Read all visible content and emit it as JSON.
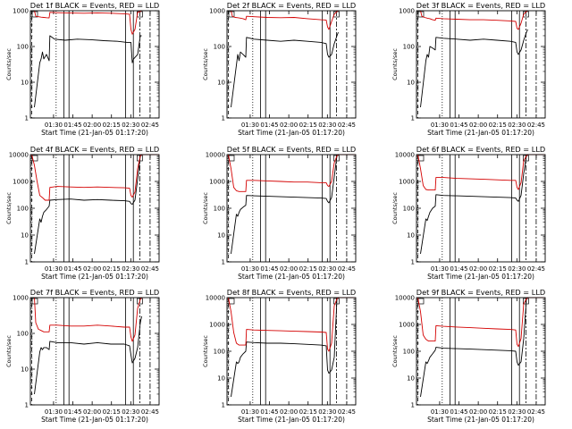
{
  "chart_data": [
    {
      "type": "line",
      "title": "Det 1f BLACK = Events, RED = LLD",
      "xlabel": "Start Time (21-Jan-05 01:17:20)",
      "ylabel": "Counts/sec",
      "y_scale": "log",
      "ylim": [
        1,
        1000
      ],
      "y_ticks": [
        1,
        10,
        100,
        1000
      ],
      "xlim_minutes": [
        0,
        96
      ],
      "x_tick_labels": [
        "01:30",
        "01:45",
        "02:00",
        "02:15",
        "02:30",
        "02:45"
      ],
      "series": [
        {
          "color": "#000000",
          "x": [
            3,
            7,
            8,
            9,
            10,
            12,
            14,
            14.5,
            18,
            26,
            35,
            45,
            55,
            65,
            72,
            75,
            76,
            77,
            80,
            82,
            83
          ],
          "values": [
            2,
            35,
            45,
            70,
            45,
            60,
            40,
            200,
            160,
            150,
            160,
            155,
            145,
            140,
            130,
            130,
            35,
            45,
            60,
            200,
            200
          ]
        },
        {
          "color": "#d40000",
          "x": [
            3,
            4,
            6,
            8,
            10,
            12,
            14,
            14.5,
            20,
            30,
            40,
            50,
            60,
            70,
            74,
            75,
            76,
            78,
            80,
            82,
            83
          ],
          "values": [
            1000,
            700,
            680,
            660,
            650,
            640,
            630,
            900,
            880,
            860,
            850,
            870,
            850,
            820,
            800,
            300,
            220,
            300,
            900,
            950,
            1000
          ]
        }
      ]
    },
    {
      "type": "line",
      "title": "Det 2f BLACK = Events, RED = LLD",
      "xlabel": "Start Time (21-Jan-05 01:17:20)",
      "ylabel": "Counts/sec",
      "y_scale": "log",
      "ylim": [
        1,
        1000
      ],
      "y_ticks": [
        1,
        10,
        100,
        1000
      ],
      "xlim_minutes": [
        0,
        96
      ],
      "x_tick_labels": [
        "01:30",
        "01:45",
        "02:00",
        "02:15",
        "02:30",
        "02:45"
      ],
      "series": [
        {
          "color": "#000000",
          "x": [
            3,
            7,
            8,
            9,
            10,
            12,
            14,
            14.5,
            20,
            30,
            40,
            50,
            60,
            70,
            74,
            75,
            76,
            78,
            80,
            82,
            83
          ],
          "values": [
            2,
            30,
            60,
            40,
            70,
            60,
            50,
            180,
            160,
            150,
            140,
            150,
            140,
            130,
            120,
            60,
            50,
            60,
            120,
            200,
            250
          ]
        },
        {
          "color": "#d40000",
          "x": [
            3,
            4,
            6,
            8,
            10,
            12,
            14,
            14.5,
            20,
            30,
            40,
            50,
            60,
            70,
            74,
            75,
            76,
            78,
            80,
            82,
            83
          ],
          "values": [
            1000,
            700,
            650,
            640,
            620,
            600,
            560,
            700,
            680,
            650,
            640,
            650,
            600,
            560,
            550,
            350,
            300,
            500,
            800,
            950,
            1000
          ]
        }
      ]
    },
    {
      "type": "line",
      "title": "Det 3f BLACK = Events, RED = LLD",
      "xlabel": "Start Time (21-Jan-05 01:17:20)",
      "ylabel": "Counts/sec",
      "y_scale": "log",
      "ylim": [
        1,
        1000
      ],
      "y_ticks": [
        1,
        10,
        100,
        1000
      ],
      "xlim_minutes": [
        0,
        96
      ],
      "x_tick_labels": [
        "01:30",
        "01:45",
        "02:00",
        "02:15",
        "02:30",
        "02:45"
      ],
      "series": [
        {
          "color": "#000000",
          "x": [
            3,
            7,
            8,
            9,
            10,
            12,
            14,
            14.5,
            20,
            30,
            40,
            50,
            60,
            70,
            74,
            75,
            76,
            78,
            80,
            82,
            83
          ],
          "values": [
            2,
            40,
            60,
            50,
            100,
            90,
            80,
            180,
            170,
            160,
            150,
            160,
            150,
            140,
            130,
            70,
            60,
            80,
            150,
            250,
            300
          ]
        },
        {
          "color": "#d40000",
          "x": [
            3,
            4,
            6,
            8,
            10,
            12,
            14,
            14.5,
            20,
            30,
            40,
            50,
            60,
            70,
            74,
            75,
            76,
            78,
            80,
            82,
            83
          ],
          "values": [
            1000,
            700,
            650,
            620,
            600,
            560,
            540,
            620,
            600,
            580,
            560,
            560,
            540,
            520,
            500,
            320,
            300,
            450,
            800,
            950,
            1000
          ]
        }
      ]
    },
    {
      "type": "line",
      "title": "Det 4f BLACK = Events, RED = LLD",
      "xlabel": "Start Time (21-Jan-05 01:17:20)",
      "ylabel": "Counts/sec",
      "y_scale": "log",
      "ylim": [
        1,
        10000
      ],
      "y_ticks": [
        1,
        10,
        100,
        1000,
        10000
      ],
      "xlim_minutes": [
        0,
        96
      ],
      "x_tick_labels": [
        "01:30",
        "01:45",
        "02:00",
        "02:15",
        "02:30",
        "02:45"
      ],
      "series": [
        {
          "color": "#000000",
          "x": [
            3,
            7,
            8,
            9,
            10,
            12,
            14,
            14.5,
            20,
            30,
            40,
            50,
            60,
            70,
            74,
            75,
            76,
            78,
            80,
            82,
            83
          ],
          "values": [
            2,
            40,
            30,
            50,
            70,
            90,
            120,
            200,
            210,
            220,
            200,
            210,
            200,
            190,
            180,
            150,
            140,
            200,
            1200,
            9000,
            10000
          ]
        },
        {
          "color": "#d40000",
          "x": [
            1,
            3,
            5,
            7,
            9,
            11,
            12,
            14,
            14.5,
            20,
            30,
            40,
            50,
            60,
            70,
            74,
            75,
            76,
            78,
            80,
            82,
            83,
            90,
            96
          ],
          "values": [
            10000,
            4000,
            1000,
            300,
            250,
            200,
            200,
            200,
            600,
            650,
            620,
            600,
            620,
            600,
            580,
            560,
            300,
            260,
            400,
            3000,
            9000,
            10000,
            10000,
            10000
          ]
        }
      ]
    },
    {
      "type": "line",
      "title": "Det 5f BLACK = Events, RED = LLD",
      "xlabel": "Start Time (21-Jan-05 01:17:20)",
      "ylabel": "Counts/sec",
      "y_scale": "log",
      "ylim": [
        1,
        10000
      ],
      "y_ticks": [
        1,
        10,
        100,
        1000,
        10000
      ],
      "xlim_minutes": [
        0,
        96
      ],
      "x_tick_labels": [
        "01:30",
        "01:45",
        "02:00",
        "02:15",
        "02:30",
        "02:45"
      ],
      "series": [
        {
          "color": "#000000",
          "x": [
            3,
            7,
            8,
            9,
            10,
            12,
            14,
            14.5,
            20,
            30,
            40,
            50,
            60,
            70,
            74,
            75,
            76,
            78,
            80,
            82,
            83
          ],
          "values": [
            2,
            60,
            50,
            70,
            90,
            110,
            130,
            300,
            290,
            280,
            270,
            260,
            250,
            240,
            230,
            180,
            160,
            250,
            1500,
            9000,
            10000
          ]
        },
        {
          "color": "#d40000",
          "x": [
            1,
            3,
            5,
            7,
            9,
            11,
            12,
            14,
            14.5,
            20,
            30,
            40,
            50,
            60,
            70,
            74,
            75,
            76,
            78,
            80,
            82,
            83,
            90,
            96
          ],
          "values": [
            10000,
            3000,
            600,
            450,
            420,
            420,
            420,
            420,
            1100,
            1100,
            1050,
            1000,
            950,
            950,
            900,
            900,
            700,
            650,
            1000,
            5000,
            9000,
            10000,
            10000,
            10000
          ]
        }
      ]
    },
    {
      "type": "line",
      "title": "Det 6f BLACK = Events, RED = LLD",
      "xlabel": "Start Time (21-Jan-05 01:17:20)",
      "ylabel": "Counts/sec",
      "y_scale": "log",
      "ylim": [
        1,
        10000
      ],
      "y_ticks": [
        1,
        10,
        100,
        1000,
        10000
      ],
      "xlim_minutes": [
        0,
        96
      ],
      "x_tick_labels": [
        "01:30",
        "01:45",
        "02:00",
        "02:15",
        "02:30",
        "02:45"
      ],
      "series": [
        {
          "color": "#000000",
          "x": [
            3,
            7,
            8,
            9,
            10,
            12,
            14,
            14.5,
            20,
            30,
            40,
            50,
            60,
            70,
            74,
            75,
            76,
            78,
            80,
            82,
            83
          ],
          "values": [
            2,
            40,
            35,
            50,
            70,
            100,
            120,
            320,
            300,
            290,
            280,
            270,
            260,
            250,
            240,
            200,
            180,
            300,
            2000,
            9000,
            10000
          ]
        },
        {
          "color": "#d40000",
          "x": [
            1,
            3,
            5,
            7,
            9,
            11,
            12,
            14,
            14.5,
            20,
            30,
            40,
            50,
            60,
            70,
            74,
            75,
            76,
            78,
            80,
            82,
            83,
            90,
            96
          ],
          "values": [
            10000,
            3000,
            700,
            500,
            480,
            480,
            480,
            480,
            1400,
            1400,
            1300,
            1250,
            1200,
            1150,
            1100,
            1100,
            600,
            500,
            900,
            6000,
            9000,
            10000,
            10000,
            10000
          ]
        }
      ]
    },
    {
      "type": "line",
      "title": "Det 7f BLACK = Events, RED = LLD",
      "xlabel": "Start Time (21-Jan-05 01:17:20)",
      "ylabel": "Counts/sec",
      "y_scale": "log",
      "ylim": [
        1,
        1000
      ],
      "y_ticks": [
        1,
        10,
        100,
        1000
      ],
      "xlim_minutes": [
        0,
        96
      ],
      "x_tick_labels": [
        "01:30",
        "01:45",
        "02:00",
        "02:15",
        "02:30",
        "02:45"
      ],
      "series": [
        {
          "color": "#000000",
          "x": [
            3,
            7,
            8,
            9,
            10,
            12,
            14,
            14.5,
            20,
            30,
            40,
            50,
            60,
            70,
            74,
            75,
            76,
            78,
            80,
            82,
            83
          ],
          "values": [
            2,
            30,
            40,
            35,
            40,
            40,
            35,
            60,
            55,
            55,
            50,
            55,
            50,
            50,
            45,
            25,
            15,
            20,
            40,
            200,
            300
          ]
        },
        {
          "color": "#d40000",
          "x": [
            3,
            4,
            6,
            8,
            10,
            12,
            14,
            14.5,
            20,
            30,
            40,
            50,
            60,
            70,
            74,
            75,
            76,
            78,
            80,
            82,
            83
          ],
          "values": [
            1000,
            200,
            130,
            120,
            110,
            110,
            110,
            170,
            170,
            160,
            160,
            170,
            160,
            150,
            150,
            80,
            60,
            90,
            500,
            900,
            1000
          ]
        }
      ]
    },
    {
      "type": "line",
      "title": "Det 8f BLACK = Events, RED = LLD",
      "xlabel": "Start Time (21-Jan-05 01:17:20)",
      "ylabel": "Counts/sec",
      "y_scale": "log",
      "ylim": [
        1,
        10000
      ],
      "y_ticks": [
        1,
        10,
        100,
        1000,
        10000
      ],
      "xlim_minutes": [
        0,
        96
      ],
      "x_tick_labels": [
        "01:30",
        "01:45",
        "02:00",
        "02:15",
        "02:30",
        "02:45"
      ],
      "series": [
        {
          "color": "#000000",
          "x": [
            3,
            7,
            8,
            9,
            10,
            12,
            14,
            14.5,
            20,
            30,
            40,
            50,
            60,
            70,
            74,
            75,
            76,
            78,
            80,
            82,
            83
          ],
          "values": [
            2,
            40,
            35,
            40,
            60,
            80,
            100,
            220,
            210,
            200,
            200,
            190,
            180,
            170,
            160,
            20,
            15,
            20,
            60,
            9000,
            10000
          ]
        },
        {
          "color": "#d40000",
          "x": [
            1,
            3,
            5,
            7,
            9,
            11,
            12,
            14,
            14.5,
            20,
            30,
            40,
            50,
            60,
            70,
            74,
            75,
            76,
            78,
            80,
            82,
            83,
            90,
            96
          ],
          "values": [
            10000,
            3000,
            500,
            200,
            170,
            170,
            170,
            170,
            650,
            620,
            600,
            580,
            560,
            540,
            520,
            500,
            120,
            100,
            200,
            5000,
            9000,
            10000,
            10000,
            10000
          ]
        }
      ]
    },
    {
      "type": "line",
      "title": "Det 9f BLACK = Events, RED = LLD",
      "xlabel": "Start Time (21-Jan-05 01:17:20)",
      "ylabel": "Counts/sec",
      "y_scale": "log",
      "ylim": [
        1,
        10000
      ],
      "y_ticks": [
        1,
        10,
        100,
        1000,
        10000
      ],
      "xlim_minutes": [
        0,
        96
      ],
      "x_tick_labels": [
        "01:30",
        "01:45",
        "02:00",
        "02:15",
        "02:30",
        "02:45"
      ],
      "series": [
        {
          "color": "#000000",
          "x": [
            3,
            7,
            8,
            9,
            10,
            12,
            14,
            14.5,
            20,
            30,
            40,
            50,
            60,
            70,
            74,
            75,
            76,
            78,
            80,
            82,
            83
          ],
          "values": [
            2,
            40,
            35,
            45,
            60,
            80,
            110,
            140,
            130,
            125,
            120,
            115,
            110,
            105,
            100,
            40,
            30,
            40,
            300,
            9000,
            10000
          ]
        },
        {
          "color": "#d40000",
          "x": [
            1,
            3,
            5,
            7,
            9,
            11,
            12,
            14,
            14.5,
            20,
            30,
            40,
            50,
            60,
            70,
            74,
            75,
            76,
            78,
            80,
            82,
            83,
            90,
            96
          ],
          "values": [
            10000,
            3000,
            400,
            280,
            240,
            240,
            240,
            240,
            900,
            850,
            800,
            760,
            720,
            680,
            650,
            620,
            180,
            150,
            300,
            6000,
            9000,
            10000,
            10000,
            10000
          ]
        }
      ]
    }
  ]
}
